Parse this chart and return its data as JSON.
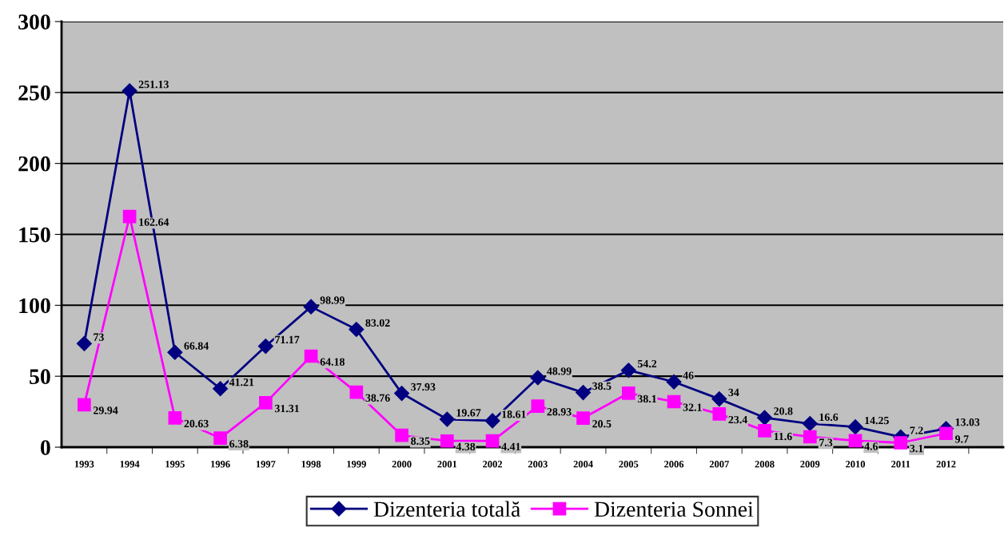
{
  "chart_data": {
    "type": "line",
    "categories": [
      "1993",
      "1994",
      "1995",
      "1996",
      "1997",
      "1998",
      "1999",
      "2000",
      "2001",
      "2002",
      "2003",
      "2004",
      "2005",
      "2006",
      "2007",
      "2008",
      "2009",
      "2010",
      "2011",
      "2012"
    ],
    "series": [
      {
        "name": "Dizenteria totală",
        "color": "#000080",
        "marker": "diamond",
        "values": [
          73,
          251.13,
          66.84,
          41.21,
          71.17,
          98.99,
          83.02,
          37.93,
          19.67,
          18.61,
          48.99,
          38.5,
          54.2,
          46,
          34,
          20.8,
          16.6,
          14.25,
          7.2,
          13.03
        ]
      },
      {
        "name": "Dizenteria Sonnei",
        "color": "#ff00ff",
        "marker": "square",
        "values": [
          29.94,
          162.64,
          20.63,
          6.38,
          31.31,
          64.18,
          38.76,
          8.35,
          4.38,
          4.41,
          28.93,
          20.5,
          38.1,
          32.1,
          23.4,
          11.6,
          7.3,
          4.6,
          3.1,
          9.7
        ]
      }
    ],
    "ylim": [
      0,
      300
    ],
    "yticks": [
      0,
      50,
      100,
      150,
      200,
      250,
      300
    ],
    "grid": "y",
    "legend": "bottom",
    "data_labels": true,
    "line_style": "solid"
  }
}
